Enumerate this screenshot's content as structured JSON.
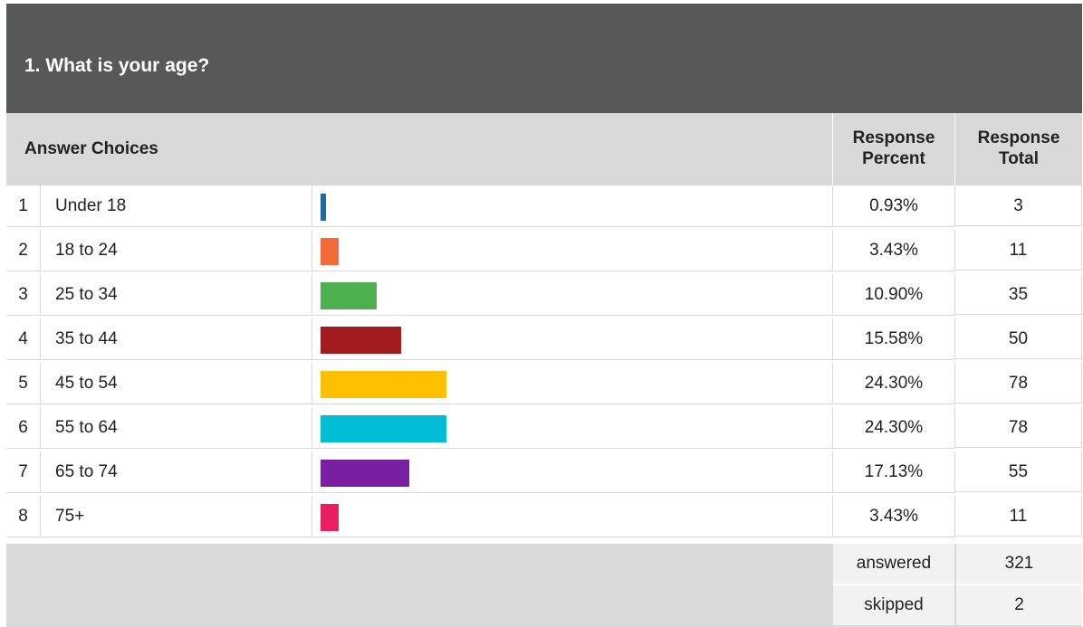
{
  "question": {
    "title": "1. What is your age?"
  },
  "header": {
    "answer_choices": "Answer Choices",
    "percent_line1": "Response",
    "percent_line2": "Percent",
    "total_line1": "Response",
    "total_line2": "Total"
  },
  "chart_data": {
    "type": "bar",
    "orientation": "horizontal",
    "title": "1. What is your age?",
    "categories": [
      "Under 18",
      "18 to 24",
      "25 to 34",
      "35 to 44",
      "45 to 54",
      "55 to 64",
      "65 to 74",
      "75+"
    ],
    "values": [
      0.93,
      3.43,
      10.9,
      15.58,
      24.3,
      24.3,
      17.13,
      3.43
    ],
    "xlim": [
      0,
      100
    ],
    "colors": [
      "#1f6aa0",
      "#f26b38",
      "#4caf50",
      "#a21c1f",
      "#ffc000",
      "#00bcd4",
      "#7b1fa2",
      "#e91e63"
    ]
  },
  "rows": [
    {
      "num": "1",
      "label": "Under 18",
      "percent": "0.93%",
      "total": "3"
    },
    {
      "num": "2",
      "label": "18 to 24",
      "percent": "3.43%",
      "total": "11"
    },
    {
      "num": "3",
      "label": "25 to 34",
      "percent": "10.90%",
      "total": "35"
    },
    {
      "num": "4",
      "label": "35 to 44",
      "percent": "15.58%",
      "total": "50"
    },
    {
      "num": "5",
      "label": "45 to 54",
      "percent": "24.30%",
      "total": "78"
    },
    {
      "num": "6",
      "label": "55 to 64",
      "percent": "24.30%",
      "total": "78"
    },
    {
      "num": "7",
      "label": "65 to 74",
      "percent": "17.13%",
      "total": "55"
    },
    {
      "num": "8",
      "label": "75+",
      "percent": "3.43%",
      "total": "11"
    }
  ],
  "summary": {
    "answered_label": "answered",
    "answered_value": "321",
    "skipped_label": "skipped",
    "skipped_value": "2"
  }
}
